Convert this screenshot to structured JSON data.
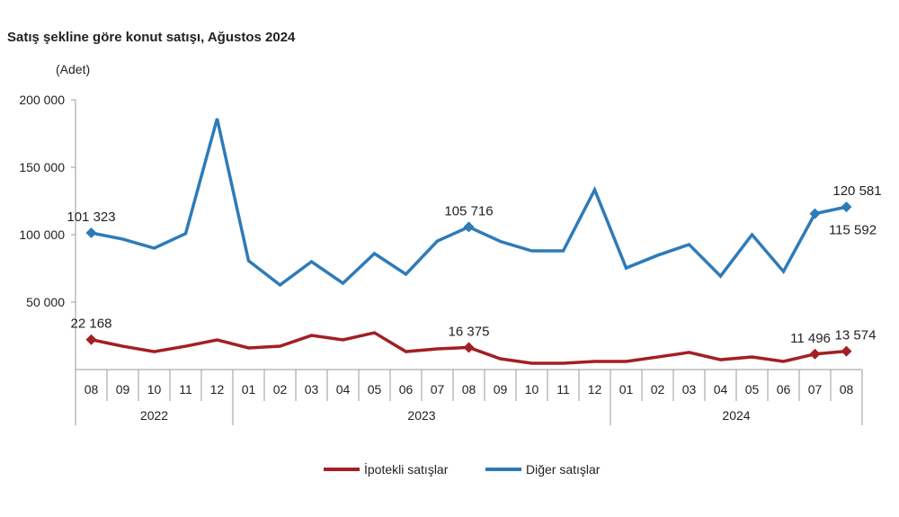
{
  "chart_data": {
    "type": "line",
    "title": "Satış şekline göre konut satışı, Ağustos 2024",
    "ylabel": "(Adet)",
    "ylim": [
      0,
      200000
    ],
    "yticks": [
      50000,
      100000,
      150000,
      200000
    ],
    "ytick_labels": [
      "50 000",
      "100 000",
      "150 000",
      "200 000"
    ],
    "grid": false,
    "legend_position": "bottom",
    "categories": [
      "08",
      "09",
      "10",
      "11",
      "12",
      "01",
      "02",
      "03",
      "04",
      "05",
      "06",
      "07",
      "08",
      "09",
      "10",
      "11",
      "12",
      "01",
      "02",
      "03",
      "04",
      "05",
      "06",
      "07",
      "08"
    ],
    "years": [
      {
        "label": "2022",
        "count": 5
      },
      {
        "label": "2023",
        "count": 12
      },
      {
        "label": "2024",
        "count": 8
      }
    ],
    "series": [
      {
        "name": "İpotekli satışlar",
        "color": "#a31f24",
        "values": [
          22168,
          17300,
          13300,
          17300,
          22000,
          16000,
          17300,
          25300,
          22000,
          27300,
          13300,
          15300,
          16375,
          8000,
          4700,
          4700,
          6000,
          6000,
          9300,
          12700,
          7300,
          9300,
          6000,
          11496,
          13574
        ],
        "labels": [
          {
            "index": 0,
            "text": "22 168"
          },
          {
            "index": 12,
            "text": "16 375"
          },
          {
            "index": 23,
            "text": "11 496"
          },
          {
            "index": 24,
            "text": "13 574"
          }
        ]
      },
      {
        "name": "Diğer satışlar",
        "color": "#2e7bb8",
        "values": [
          101323,
          96700,
          90000,
          100800,
          186000,
          80700,
          62700,
          80000,
          64000,
          86000,
          70700,
          95300,
          105716,
          95000,
          88000,
          88000,
          133300,
          75300,
          84700,
          92700,
          69300,
          100000,
          72700,
          115592,
          120581
        ],
        "labels": [
          {
            "index": 0,
            "text": "101 323"
          },
          {
            "index": 12,
            "text": "105 716"
          },
          {
            "index": 23,
            "text": "115 592"
          },
          {
            "index": 24,
            "text": "120 581"
          }
        ]
      }
    ]
  }
}
